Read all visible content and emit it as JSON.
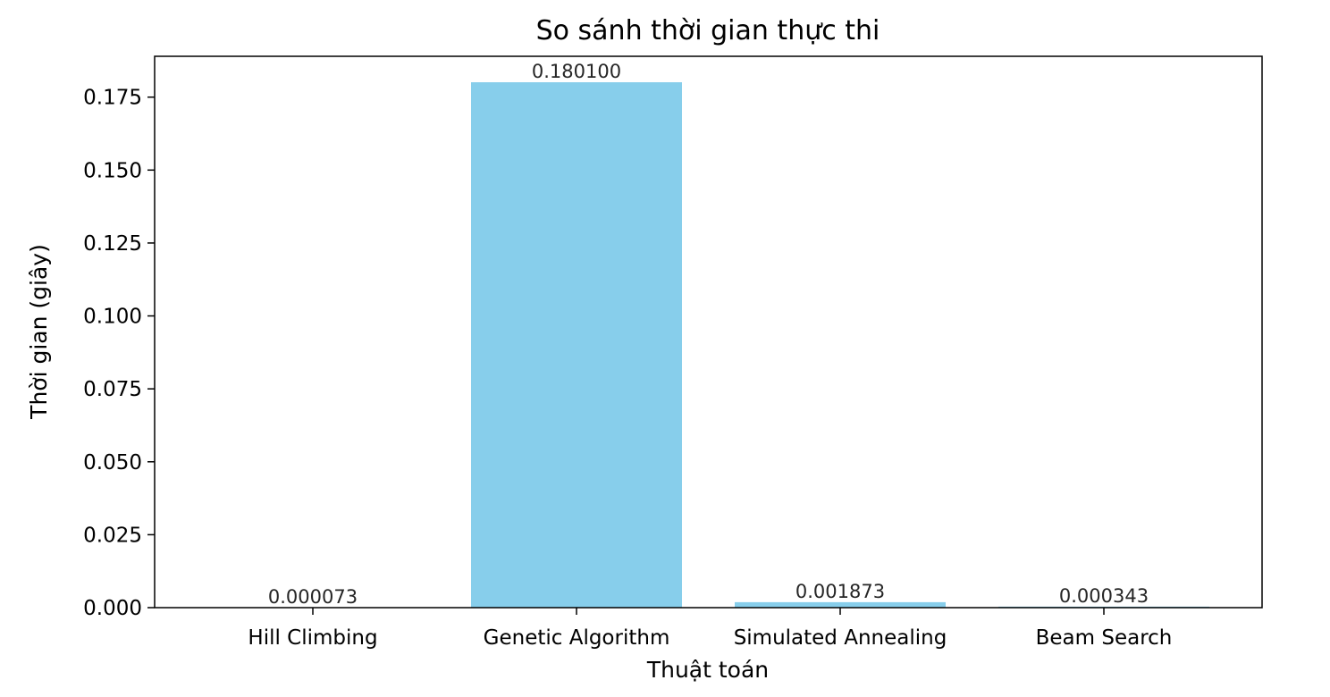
{
  "chart_data": {
    "type": "bar",
    "title": "So sánh thời gian thực thi",
    "xlabel": "Thuật toán",
    "ylabel": "Thời gian (giây)",
    "categories": [
      "Hill Climbing",
      "Genetic Algorithm",
      "Simulated Annealing",
      "Beam Search"
    ],
    "values": [
      7.3e-05,
      0.1801,
      0.001873,
      0.000343
    ],
    "value_labels": [
      "0.000073",
      "0.180100",
      "0.001873",
      "0.000343"
    ],
    "ylim": [
      0,
      0.189
    ],
    "yticks": [
      0,
      0.025,
      0.05,
      0.075,
      0.1,
      0.125,
      0.15,
      0.175
    ],
    "ytick_labels": [
      "0.000",
      "0.025",
      "0.050",
      "0.075",
      "0.100",
      "0.125",
      "0.150",
      "0.175"
    ],
    "bar_color": "#87ceeb",
    "grid": false,
    "legend": "none"
  }
}
